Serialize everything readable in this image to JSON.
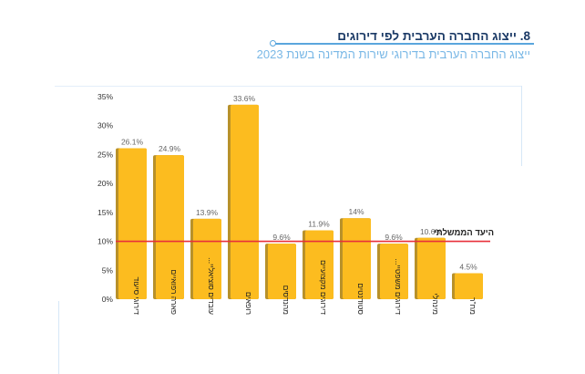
{
  "header": {
    "title": "8. ייצוג החברה הערבית לפי דירוגים",
    "subtitle": "ייצוג החברה הערבית בדירוגי שירות המדינה בשנת 2023"
  },
  "colors": {
    "bar": "#fcbc1f",
    "bar_shadow": "#b8912a",
    "target_line": "#e8303a",
    "title": "#1b3a66",
    "subtitle": "#7ab8e6"
  },
  "chart_data": {
    "type": "bar",
    "title": "ייצוג החברה הערבית בדירוגי שירות המדינה בשנת 2023",
    "xlabel": "",
    "ylabel": "",
    "categories": [
      "דירוגי סיעוד",
      "פארה רפואיים",
      "עובדים סוציאליי...",
      "רופאים",
      "מהנדסים",
      "דירוגים מקצועיים",
      "סטודנטים",
      "דירוגים משפטיי...",
      "מינהלי",
      "מח\"ר"
    ],
    "values": [
      26.1,
      24.9,
      13.9,
      33.6,
      9.6,
      11.9,
      14,
      9.6,
      10.6,
      4.5
    ],
    "data_labels": [
      "26.1%",
      "24.9%",
      "13.9%",
      "33.6%",
      "9.6%",
      "11.9%",
      "14%",
      "9.6%",
      "10.6%",
      "4.5%"
    ],
    "ylim": [
      0,
      35
    ],
    "yticks": [
      0,
      5,
      10,
      15,
      20,
      25,
      30,
      35
    ],
    "ytick_labels": [
      "0%",
      "5%",
      "10%",
      "15%",
      "20%",
      "25%",
      "30%",
      "35%"
    ],
    "grid": false,
    "reference_line": {
      "value": 10,
      "label": "היעד הממשלתי"
    }
  }
}
